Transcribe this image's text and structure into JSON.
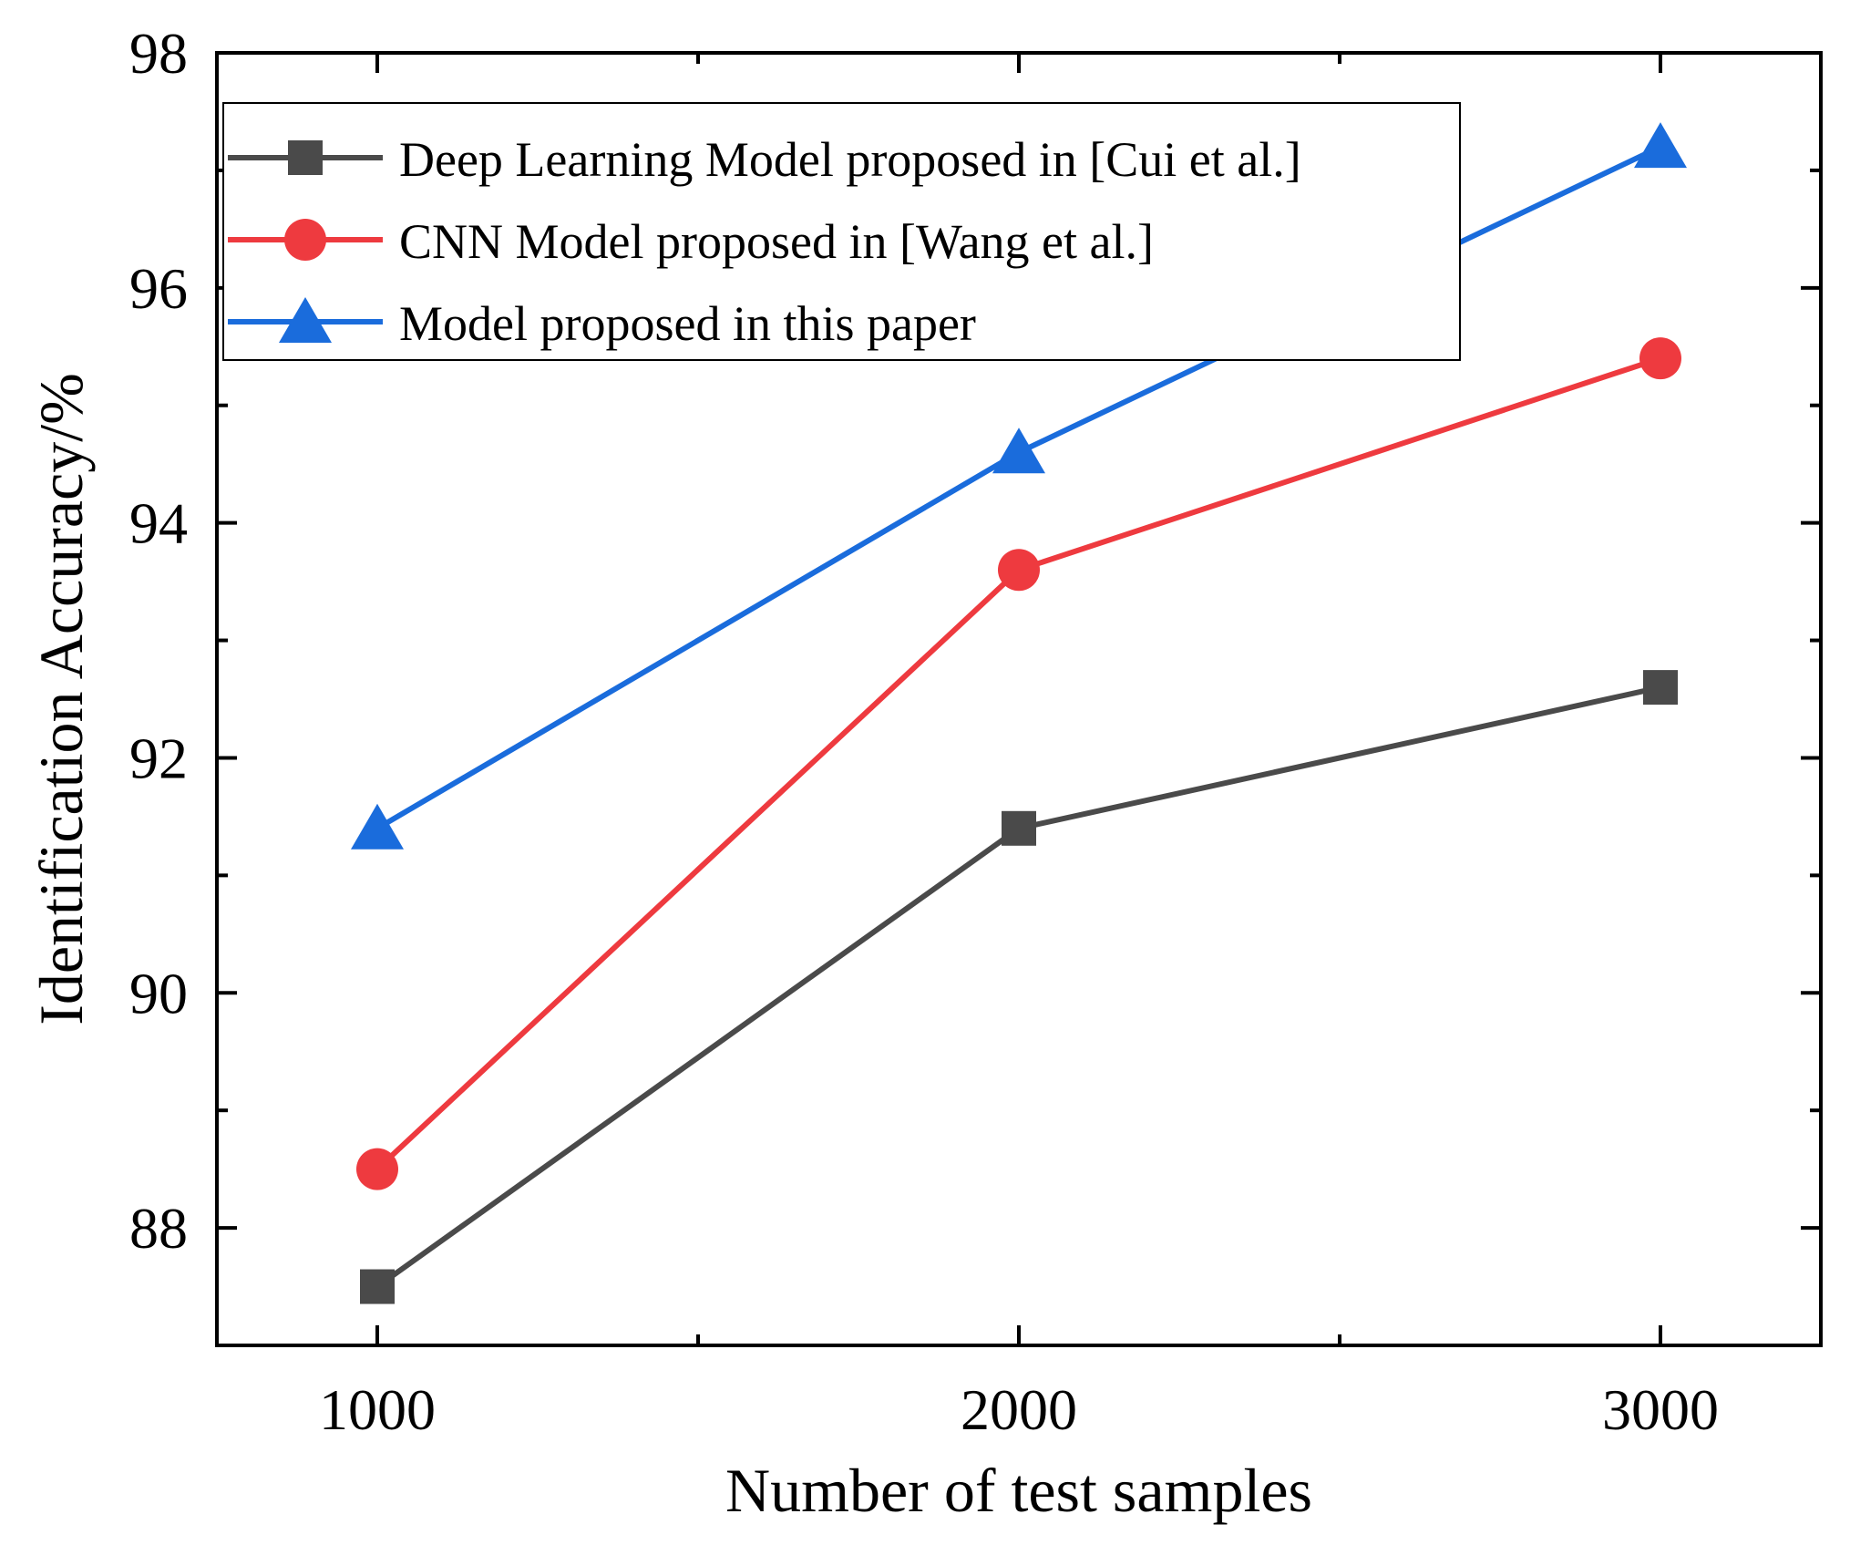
{
  "chart_data": {
    "type": "line",
    "xlabel": "Number of test samples",
    "ylabel": "Identification Accuracy/%",
    "x": [
      1000,
      2000,
      3000
    ],
    "xlim": [
      750,
      3250
    ],
    "ylim": [
      87,
      98
    ],
    "x_ticks": [
      "1000",
      "2000",
      "3000"
    ],
    "y_ticks": [
      "88",
      "90",
      "92",
      "94",
      "96",
      "98"
    ],
    "legend_position": "top-left",
    "series": [
      {
        "name": "Deep Learning Model proposed in [Cui et al.]",
        "marker": "square",
        "color": "#4a4a4a",
        "values": [
          87.5,
          91.4,
          92.6
        ]
      },
      {
        "name": "CNN Model proposed in [Wang et al.]",
        "marker": "circle",
        "color": "#ee3a3f",
        "values": [
          88.5,
          93.6,
          95.4
        ]
      },
      {
        "name": "Model proposed in this paper",
        "marker": "triangle",
        "color": "#1a6cdc",
        "values": [
          91.4,
          94.6,
          97.2
        ]
      }
    ]
  }
}
